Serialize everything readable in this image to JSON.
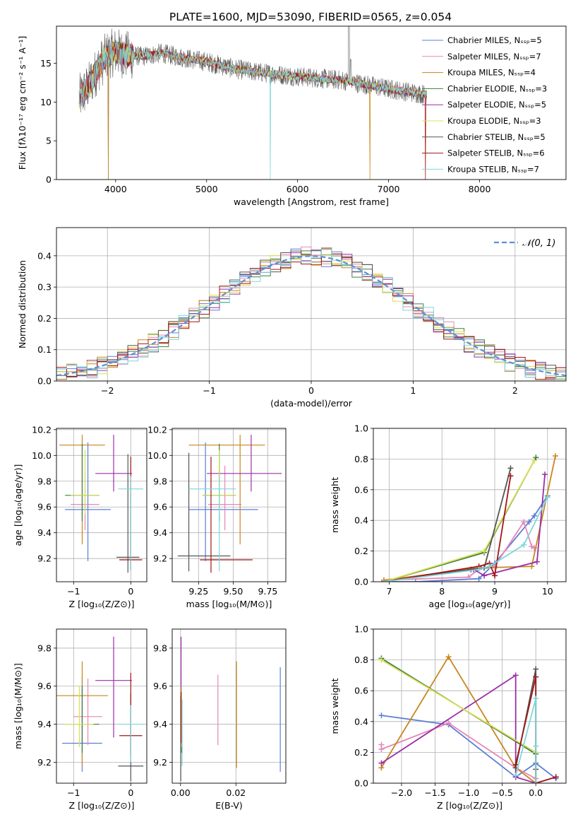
{
  "title": "PLATE=1600, MJD=53090, FIBERID=0565, z=0.054",
  "colors": [
    "#5b7fd6",
    "#e687b8",
    "#c8861e",
    "#3f7f3f",
    "#9a2fa8",
    "#d9e055",
    "#555555",
    "#a31515",
    "#7fd6dc"
  ],
  "chart_data": [
    {
      "id": "spectrum",
      "type": "line",
      "xlabel": "wavelength [Angstrom, rest frame]",
      "ylabel": "Flux [fλ10⁻¹⁷ erg cm⁻² s⁻¹ A⁻¹]",
      "xlim": [
        3350,
        8950
      ],
      "ylim": [
        0,
        19.8
      ],
      "xticks": [
        4000,
        5000,
        6000,
        7000,
        8000
      ],
      "yticks": [
        0,
        5,
        10,
        15
      ],
      "grid": false,
      "legend_placement": "top-right",
      "legend": [
        "Chabrier MILES, N_SSP=5",
        "Salpeter MILES, N_SSP=7",
        "Kroupa MILES, N_SSP=4",
        "Chabrier ELODIE, N_SSP=3",
        "Salpeter ELODIE, N_SSP=5",
        "Kroupa ELODIE, N_SSP=3",
        "Chabrier STELIB, N_SSP=5",
        "Salpeter STELIB, N_SSP=6",
        "Kroupa STELIB, N_SSP=7"
      ],
      "continuum": [
        [
          3600,
          10.5
        ],
        [
          3700,
          12
        ],
        [
          3800,
          14.2
        ],
        [
          3900,
          16
        ],
        [
          4000,
          16.5
        ],
        [
          4100,
          16.1
        ],
        [
          4300,
          15.9
        ],
        [
          4500,
          16.3
        ],
        [
          4800,
          15.6
        ],
        [
          5000,
          15.2
        ],
        [
          5300,
          14.3
        ],
        [
          5600,
          13.8
        ],
        [
          6000,
          13.3
        ],
        [
          6500,
          12.8
        ],
        [
          7000,
          11.7
        ],
        [
          7400,
          11.0
        ]
      ]
    },
    {
      "id": "residuals",
      "type": "histogram",
      "xlabel": "(data-model)/error",
      "ylabel": "Normed distribution",
      "xlim": [
        -2.5,
        2.5
      ],
      "ylim": [
        0,
        0.49
      ],
      "xticks": [
        -2,
        -1,
        0,
        1,
        2
      ],
      "yticks": [
        0.0,
        0.1,
        0.2,
        0.3,
        0.4
      ],
      "grid": true,
      "legend_placement": "top-right",
      "normal_label": "𝒩(0, 1)"
    },
    {
      "id": "z-age",
      "type": "scatter",
      "xlabel": "Z [log₁₀(Z/Z⊙)]",
      "ylabel": "age  [log₁₀(age/yr)]",
      "xlim": [
        -1.3,
        0.28
      ],
      "ylim": [
        9.02,
        10.21
      ],
      "xticks": [
        -1,
        0
      ],
      "yticks": [
        9.2,
        9.4,
        9.6,
        9.8,
        10.0,
        10.2
      ],
      "grid": true,
      "points": [
        {
          "x": -0.75,
          "y": 9.58,
          "ex": [
            0.4,
            0.4
          ],
          "ey": [
            0.4,
            0.52
          ]
        },
        {
          "x": -0.8,
          "y": 9.62,
          "ex": [
            0.25,
            0.25
          ],
          "ey": [
            0.2,
            0.25
          ]
        },
        {
          "x": -0.85,
          "y": 10.08,
          "ex": [
            0.4,
            0.4
          ],
          "ey": [
            0.77,
            0.08
          ]
        },
        {
          "x": -0.85,
          "y": 9.69,
          "ex": [
            0.3,
            0.3
          ],
          "ey": [
            0.2,
            0.4
          ]
        },
        {
          "x": -0.3,
          "y": 9.86,
          "ex": [
            0.32,
            0.32
          ],
          "ey": [
            0.14,
            0.3
          ]
        },
        {
          "x": -0.8,
          "y": 9.69,
          "ex": [
            0.25,
            0.25
          ],
          "ey": [
            0.15,
            0.35
          ]
        },
        {
          "x": -0.05,
          "y": 9.21,
          "ex": [
            0.2,
            0.2
          ],
          "ey": [
            0.12,
            0.8
          ]
        },
        {
          "x": 0,
          "y": 9.19,
          "ex": [
            0.2,
            0.2
          ],
          "ey": [
            0.08,
            0.8
          ]
        },
        {
          "x": 0.0,
          "y": 9.74,
          "ex": [
            0.22,
            0.22
          ],
          "ey": [
            0.64,
            0.1
          ]
        }
      ]
    },
    {
      "id": "mass-age",
      "type": "scatter",
      "xlabel": "mass [log₁₀(M/M⊙)]",
      "ylabel": "",
      "xlim": [
        9.06,
        9.88
      ],
      "ylim": [
        9.02,
        10.21
      ],
      "xticks": [
        9.25,
        9.5,
        9.75
      ],
      "tick_labels": [
        "9.25",
        "9.50",
        "9.75"
      ],
      "yticks": [
        9.2,
        9.4,
        9.6,
        9.8,
        10.0,
        10.2
      ],
      "grid": true,
      "points": [
        {
          "x": 9.3,
          "y": 9.58,
          "ex": [
            0.12,
            0.38
          ],
          "ey": [
            0.4,
            0.52
          ]
        },
        {
          "x": 9.44,
          "y": 9.62,
          "ex": [
            0.12,
            0.12
          ],
          "ey": [
            0.2,
            0.3
          ]
        },
        {
          "x": 9.55,
          "y": 10.08,
          "ex": [
            0.37,
            0.18
          ],
          "ey": [
            0.77,
            0.08
          ]
        },
        {
          "x": 9.4,
          "y": 9.69,
          "ex": [
            0.12,
            0.12
          ],
          "ey": [
            0.2,
            0.4
          ]
        },
        {
          "x": 9.63,
          "y": 9.86,
          "ex": [
            0.32,
            0.22
          ],
          "ey": [
            0.14,
            0.3
          ]
        },
        {
          "x": 9.4,
          "y": 9.69,
          "ex": [
            0.12,
            0.12
          ],
          "ey": [
            0.15,
            0.35
          ]
        },
        {
          "x": 9.18,
          "y": 9.22,
          "ex": [
            0.08,
            0.3
          ],
          "ey": [
            0.12,
            0.8
          ]
        },
        {
          "x": 9.34,
          "y": 9.19,
          "ex": [
            0.08,
            0.3
          ],
          "ey": [
            0.1,
            0.8
          ]
        },
        {
          "x": 9.4,
          "y": 9.74,
          "ex": [
            0.22,
            0.12
          ],
          "ey": [
            0.64,
            0.1
          ]
        }
      ]
    },
    {
      "id": "age-weight",
      "type": "line",
      "xlabel": "age  [log₁₀(age/yr)]",
      "ylabel": "mass weight",
      "xlim": [
        6.7,
        10.35
      ],
      "ylim": [
        0,
        1.0
      ],
      "xticks": [
        7,
        8,
        9,
        10
      ],
      "yticks": [
        0.0,
        0.2,
        0.4,
        0.6,
        0.8,
        1.0
      ],
      "grid": true,
      "series": [
        {
          "x": [
            6.9,
            7.5,
            8.7,
            9.0,
            9.65,
            9.75,
            10.0
          ],
          "y": [
            0.0,
            0.0,
            0.02,
            0.12,
            0.39,
            0.43,
            0.56
          ]
        },
        {
          "x": [
            6.9,
            8.5,
            8.7,
            9.0,
            9.55,
            9.7,
            9.75
          ],
          "y": [
            0.01,
            0.03,
            0.08,
            0.1,
            0.39,
            0.23,
            0.22
          ]
        },
        {
          "x": [
            6.9,
            8.7,
            9.7,
            10.15
          ],
          "y": [
            0.01,
            0.09,
            0.1,
            0.82
          ]
        },
        {
          "x": [
            6.9,
            8.8,
            9.78
          ],
          "y": [
            0.0,
            0.19,
            0.81
          ]
        },
        {
          "x": [
            6.9,
            8.6,
            8.8,
            9.8,
            9.95
          ],
          "y": [
            0.0,
            0.08,
            0.04,
            0.13,
            0.7
          ]
        },
        {
          "x": [
            6.9,
            8.8,
            9.75
          ],
          "y": [
            0.0,
            0.2,
            0.79
          ]
        },
        {
          "x": [
            6.9,
            8.55,
            8.8,
            9.3
          ],
          "y": [
            0.0,
            0.08,
            0.09,
            0.74
          ]
        },
        {
          "x": [
            6.9,
            8.7,
            8.9,
            9.0,
            9.3
          ],
          "y": [
            0.0,
            0.1,
            0.12,
            0.04,
            0.69
          ]
        },
        {
          "x": [
            6.9,
            8.7,
            8.9,
            9.55,
            10.0
          ],
          "y": [
            0.0,
            0.08,
            0.1,
            0.24,
            0.55
          ]
        }
      ]
    },
    {
      "id": "z-mass",
      "type": "scatter",
      "xlabel": "Z [log₁₀(Z/Z⊙)]",
      "ylabel": "mass [log₁₀(M/M⊙)]",
      "xlim": [
        -1.3,
        0.28
      ],
      "ylim": [
        9.09,
        9.9
      ],
      "xticks": [
        -1,
        0
      ],
      "yticks": [
        9.2,
        9.4,
        9.6,
        9.8
      ],
      "grid": true,
      "points": [
        {
          "x": -0.85,
          "y": 9.3,
          "ex": [
            0.35,
            0.35
          ],
          "ey": [
            0.15,
            0.35
          ]
        },
        {
          "x": -0.75,
          "y": 9.44,
          "ex": [
            0.25,
            0.25
          ],
          "ey": [
            0.15,
            0.2
          ]
        },
        {
          "x": -0.85,
          "y": 9.55,
          "ex": [
            0.45,
            0.45
          ],
          "ey": [
            0.37,
            0.18
          ]
        },
        {
          "x": -0.85,
          "y": 9.4,
          "ex": [
            0.3,
            0.3
          ],
          "ey": [
            0.15,
            0.2
          ]
        },
        {
          "x": -0.3,
          "y": 9.63,
          "ex": [
            0.32,
            0.32
          ],
          "ey": [
            0.3,
            0.23
          ]
        },
        {
          "x": -0.9,
          "y": 9.4,
          "ex": [
            0.25,
            0.25
          ],
          "ey": [
            0.12,
            0.2
          ]
        },
        {
          "x": 0.0,
          "y": 9.18,
          "ex": [
            0.22,
            0.22
          ],
          "ey": [
            0.08,
            0.38
          ]
        },
        {
          "x": 0.0,
          "y": 9.34,
          "ex": [
            0.2,
            0.2
          ],
          "ey": [
            0.1,
            0.33
          ]
        },
        {
          "x": 0.0,
          "y": 9.4,
          "ex": [
            0.22,
            0.22
          ],
          "ey": [
            0.2,
            0.1
          ]
        }
      ]
    },
    {
      "id": "ebv-mass",
      "type": "scatter",
      "xlabel": "E(B-V)",
      "ylabel": "",
      "xlim": [
        -0.003,
        0.038
      ],
      "ylim": [
        9.09,
        9.9
      ],
      "xticks": [
        0.0,
        0.02
      ],
      "tick_labels": [
        "0.00",
        "0.02"
      ],
      "yticks": [
        9.2,
        9.4,
        9.6,
        9.8
      ],
      "grid": true,
      "points": [
        {
          "x": 0.036,
          "y": 9.42,
          "ex": [
            0,
            0
          ],
          "ey": [
            0.27,
            0.28
          ]
        },
        {
          "x": 0.0135,
          "y": 9.47,
          "ex": [
            0,
            0
          ],
          "ey": [
            0.18,
            0.19
          ]
        },
        {
          "x": 0.0202,
          "y": 9.45,
          "ex": [
            0,
            0
          ],
          "ey": [
            0.28,
            0.28
          ]
        },
        {
          "x": 0.0003,
          "y": 9.4,
          "ex": [
            0,
            0
          ],
          "ey": [
            0.15,
            0.2
          ]
        },
        {
          "x": 0.0002,
          "y": 9.62,
          "ex": [
            0,
            0
          ],
          "ey": [
            0.3,
            0.24
          ]
        },
        {
          "x": 0.0004,
          "y": 9.4,
          "ex": [
            0,
            0
          ],
          "ey": [
            0.12,
            0.2
          ]
        },
        {
          "x": 0.0001,
          "y": 9.35,
          "ex": [
            0,
            0
          ],
          "ey": [
            0.25,
            0.2
          ]
        },
        {
          "x": 0.0002,
          "y": 9.45,
          "ex": [
            0,
            0
          ],
          "ey": [
            0.15,
            0.12
          ]
        },
        {
          "x": 0.0006,
          "y": 9.38,
          "ex": [
            0,
            0
          ],
          "ey": [
            0.2,
            0.15
          ]
        }
      ]
    },
    {
      "id": "z-weight",
      "type": "line",
      "xlabel": "Z [log₁₀(Z/Z⊙)]",
      "ylabel": "mass weight",
      "xlim": [
        -2.42,
        0.45
      ],
      "ylim": [
        0,
        1.0
      ],
      "xticks": [
        -2.0,
        -1.5,
        -1.0,
        -0.5,
        0.0
      ],
      "tick_labels": [
        "−2.0",
        "−1.5",
        "−1.0",
        "−0.5",
        "0.0"
      ],
      "yticks": [
        0.0,
        0.2,
        0.4,
        0.6,
        0.8,
        1.0
      ],
      "grid": true,
      "series": [
        {
          "x": [
            -2.3,
            -1.3,
            -0.3,
            0.0,
            0.3
          ],
          "y": [
            0.44,
            0.38,
            0.04,
            0.13,
            0.03
          ]
        },
        {
          "x": [
            -2.3,
            -2.3,
            -1.3,
            -0.3,
            0.0
          ],
          "y": [
            0.25,
            0.22,
            0.39,
            0.1,
            0.03
          ]
        },
        {
          "x": [
            -2.3,
            -1.3,
            -0.3,
            0.0
          ],
          "y": [
            0.1,
            0.82,
            0.1,
            0.0
          ]
        },
        {
          "x": [
            -2.3,
            0.0,
            0.0
          ],
          "y": [
            0.81,
            0.19,
            0.0
          ]
        },
        {
          "x": [
            -2.3,
            -0.3,
            -0.3,
            0.0,
            0.3
          ],
          "y": [
            0.13,
            0.7,
            0.04,
            0.0,
            0.04
          ]
        },
        {
          "x": [
            -2.3,
            0.0,
            0.0
          ],
          "y": [
            0.8,
            0.2,
            0.0
          ]
        },
        {
          "x": [
            -0.3,
            0.0,
            0.0,
            0.0
          ],
          "y": [
            0.1,
            0.74,
            0.09,
            0.0
          ]
        },
        {
          "x": [
            -0.3,
            0.0,
            0.0,
            0.3
          ],
          "y": [
            0.12,
            0.69,
            0.0,
            0.04
          ]
        },
        {
          "x": [
            -0.3,
            0.0,
            0.0,
            0.0
          ],
          "y": [
            0.05,
            0.55,
            0.24,
            0.0
          ]
        }
      ]
    }
  ]
}
